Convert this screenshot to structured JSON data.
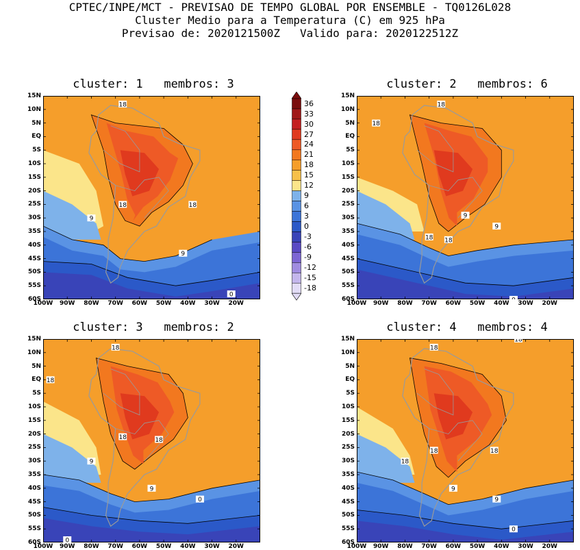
{
  "header": {
    "line1": "CPTEC/INPE/MCT - PREVISAO DE TEMPO GLOBAL POR ENSEMBLE - TQ0126L028",
    "line2": "Cluster Medio para a Temperatura (C) em 925 hPa",
    "line3": "Previsao de: 2020121500Z   Valido para: 2020122512Z"
  },
  "lat_labels": [
    "15N",
    "10N",
    "5N",
    "EQ",
    "5S",
    "10S",
    "15S",
    "20S",
    "25S",
    "30S",
    "35S",
    "40S",
    "45S",
    "50S",
    "55S",
    "60S"
  ],
  "lon_labels": [
    "100W",
    "90W",
    "80W",
    "70W",
    "60W",
    "50W",
    "40W",
    "30W",
    "20W"
  ],
  "colorbar": {
    "levels": [
      "36",
      "33",
      "30",
      "27",
      "24",
      "21",
      "18",
      "15",
      "12",
      "9",
      "6",
      "3",
      "0",
      "-3",
      "-6",
      "-9",
      "-12",
      "-15",
      "-18"
    ],
    "colors": [
      "#7a0d0d",
      "#a01818",
      "#c42020",
      "#e03a1e",
      "#ee5a26",
      "#f2781f",
      "#f59e2b",
      "#f7c04a",
      "#fbe58a",
      "#7eb2ea",
      "#5a93e4",
      "#3c74d8",
      "#2b59c8",
      "#3944b8",
      "#5a4ac4",
      "#7d66d4",
      "#a08ce0",
      "#c4b6ec",
      "#e2dcf6"
    ]
  },
  "panels": [
    {
      "title": "cluster: 1   membros: 3",
      "labels": [
        "18",
        "18",
        "18",
        "9",
        "9",
        "0"
      ]
    },
    {
      "title": "cluster: 2   membros: 6",
      "labels": [
        "18",
        "18",
        "18",
        "9",
        "9",
        "18",
        "0"
      ]
    },
    {
      "title": "cluster: 3   membros: 2",
      "labels": [
        "18",
        "18",
        "18",
        "18",
        "9",
        "9",
        "0",
        "0"
      ]
    },
    {
      "title": "cluster: 4   membros: 4",
      "labels": [
        "18",
        "18",
        "18",
        "18",
        "18",
        "9",
        "9",
        "0"
      ]
    }
  ],
  "chart_data": {
    "type": "heatmap",
    "variable": "Temperatura (C) em 925 hPa",
    "lat_range": [
      "60S",
      "15N"
    ],
    "lon_range": [
      "100W",
      "10W"
    ],
    "contour_interval_C": 3,
    "panels": [
      {
        "cluster": 1,
        "members": 3
      },
      {
        "cluster": 2,
        "members": 6
      },
      {
        "cluster": 3,
        "members": 2
      },
      {
        "cluster": 4,
        "members": 4
      }
    ]
  }
}
